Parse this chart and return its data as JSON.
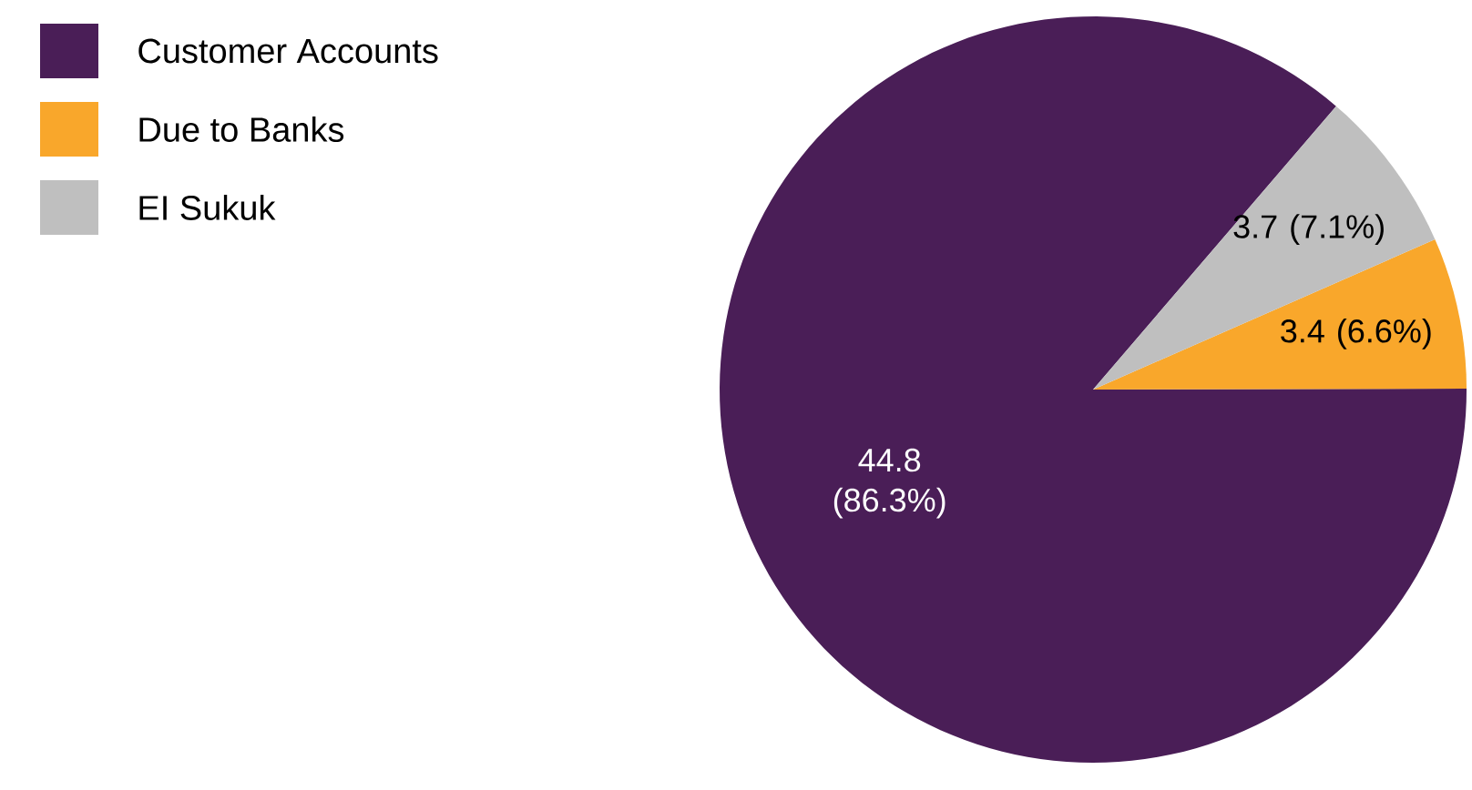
{
  "chart_data": {
    "type": "pie",
    "categories": [
      "Customer Accounts",
      "Due to Banks",
      "EI Sukuk"
    ],
    "values": [
      44.8,
      3.4,
      3.7
    ],
    "value_labels": [
      "44.8 (86.3%)",
      "3.4 (6.6%)",
      "3.7 (7.1%)"
    ],
    "colors": [
      "#4a1e57",
      "#f9a72b",
      "#bfbfbf"
    ],
    "legend": "top left"
  }
}
